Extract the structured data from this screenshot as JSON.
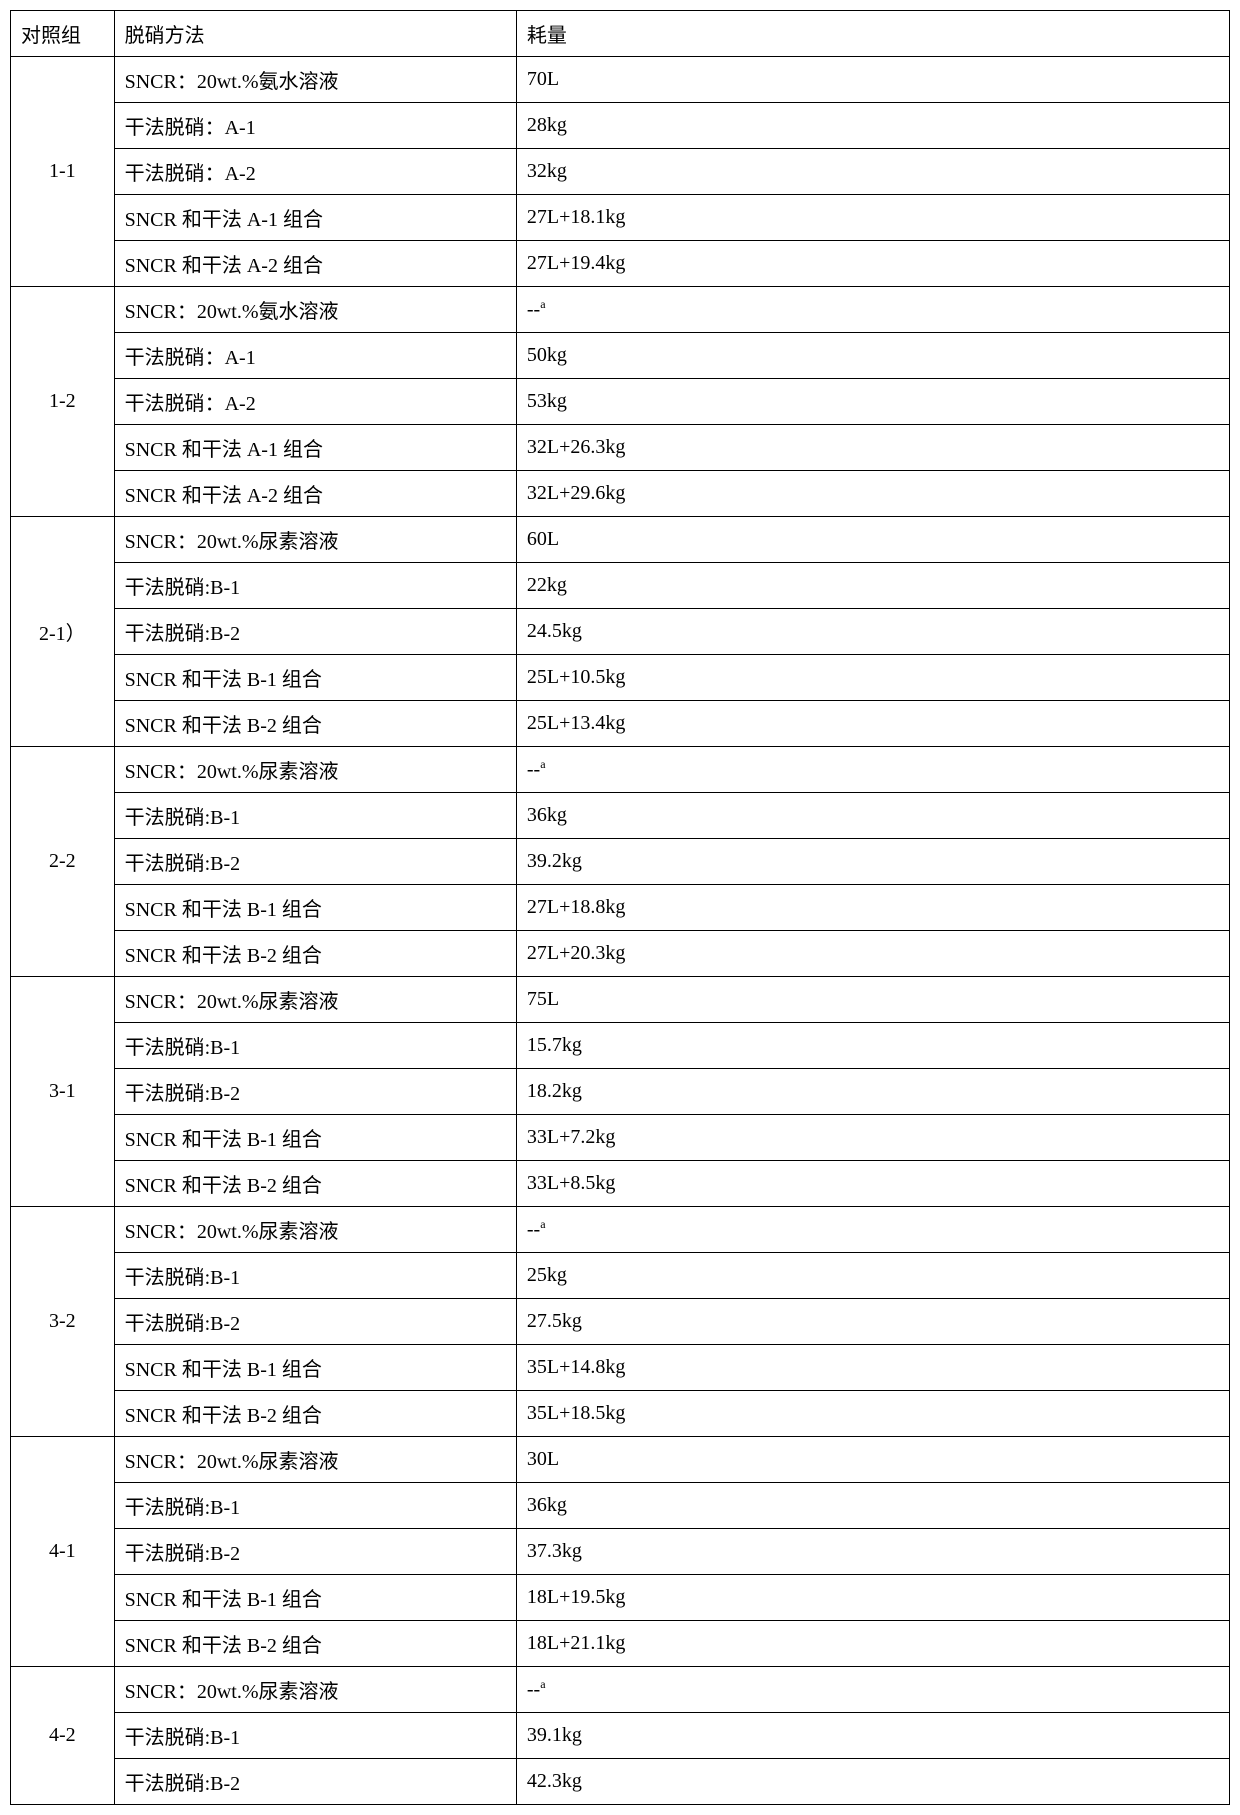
{
  "headers": {
    "col1": "对照组",
    "col2": "脱硝方法",
    "col3": "耗量"
  },
  "groups": [
    {
      "label": "1-1",
      "rows": [
        {
          "method": "SNCR：20wt.%氨水溶液",
          "consumption": "70L"
        },
        {
          "method": "干法脱硝：A-1",
          "consumption": "28kg"
        },
        {
          "method": "干法脱硝：A-2",
          "consumption": "32kg"
        },
        {
          "method": "SNCR 和干法 A-1 组合",
          "consumption": "27L+18.1kg"
        },
        {
          "method": "SNCR 和干法 A-2 组合",
          "consumption": "27L+19.4kg"
        }
      ]
    },
    {
      "label": "1-2",
      "rows": [
        {
          "method": "SNCR：20wt.%氨水溶液",
          "consumption": "--",
          "sup": "a"
        },
        {
          "method": "干法脱硝：A-1",
          "consumption": "50kg"
        },
        {
          "method": "干法脱硝：A-2",
          "consumption": "53kg"
        },
        {
          "method": "SNCR 和干法 A-1 组合",
          "consumption": "32L+26.3kg"
        },
        {
          "method": "SNCR 和干法 A-2 组合",
          "consumption": "32L+29.6kg"
        }
      ]
    },
    {
      "label": "2-1）",
      "rows": [
        {
          "method": "SNCR：20wt.%尿素溶液",
          "consumption": "60L"
        },
        {
          "method": "干法脱硝:B-1",
          "consumption": "22kg"
        },
        {
          "method": "干法脱硝:B-2",
          "consumption": "24.5kg"
        },
        {
          "method": "SNCR 和干法 B-1 组合",
          "consumption": "25L+10.5kg"
        },
        {
          "method": "SNCR 和干法 B-2 组合",
          "consumption": "25L+13.4kg"
        }
      ]
    },
    {
      "label": "2-2",
      "rows": [
        {
          "method": "SNCR：20wt.%尿素溶液",
          "consumption": "--",
          "sup": "a"
        },
        {
          "method": "干法脱硝:B-1",
          "consumption": "36kg"
        },
        {
          "method": "干法脱硝:B-2",
          "consumption": "39.2kg"
        },
        {
          "method": "SNCR 和干法 B-1 组合",
          "consumption": "27L+18.8kg"
        },
        {
          "method": "SNCR 和干法 B-2 组合",
          "consumption": "27L+20.3kg"
        }
      ]
    },
    {
      "label": "3-1",
      "rows": [
        {
          "method": "SNCR：20wt.%尿素溶液",
          "consumption": "75L"
        },
        {
          "method": "干法脱硝:B-1",
          "consumption": "15.7kg"
        },
        {
          "method": "干法脱硝:B-2",
          "consumption": "18.2kg"
        },
        {
          "method": "SNCR 和干法 B-1 组合",
          "consumption": "33L+7.2kg"
        },
        {
          "method": "SNCR 和干法 B-2 组合",
          "consumption": "33L+8.5kg"
        }
      ]
    },
    {
      "label": "3-2",
      "rows": [
        {
          "method": "SNCR：20wt.%尿素溶液",
          "consumption": "--",
          "sup": "a"
        },
        {
          "method": "干法脱硝:B-1",
          "consumption": "25kg"
        },
        {
          "method": "干法脱硝:B-2",
          "consumption": "27.5kg"
        },
        {
          "method": "SNCR 和干法 B-1 组合",
          "consumption": "35L+14.8kg"
        },
        {
          "method": "SNCR 和干法 B-2 组合",
          "consumption": "35L+18.5kg"
        }
      ]
    },
    {
      "label": "4-1",
      "rows": [
        {
          "method": "SNCR：20wt.%尿素溶液",
          "consumption": "30L"
        },
        {
          "method": "干法脱硝:B-1",
          "consumption": "36kg"
        },
        {
          "method": "干法脱硝:B-2",
          "consumption": "37.3kg"
        },
        {
          "method": "SNCR 和干法 B-1 组合",
          "consumption": "18L+19.5kg"
        },
        {
          "method": "SNCR 和干法 B-2 组合",
          "consumption": "18L+21.1kg"
        }
      ]
    },
    {
      "label": "4-2",
      "rows": [
        {
          "method": "SNCR：20wt.%尿素溶液",
          "consumption": "--",
          "sup": "a"
        },
        {
          "method": "干法脱硝:B-1",
          "consumption": "39.1kg"
        },
        {
          "method": "干法脱硝:B-2",
          "consumption": "42.3kg"
        }
      ]
    }
  ]
}
